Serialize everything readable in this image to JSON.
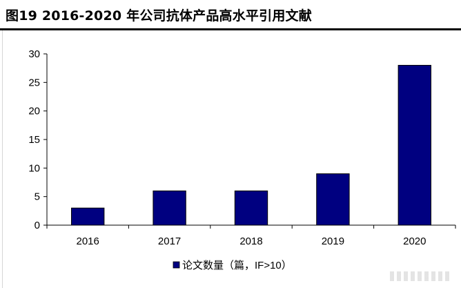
{
  "title": "图19 2016-2020 年公司抗体产品高水平引用文献",
  "chart_data": {
    "type": "bar",
    "categories": [
      "2016",
      "2017",
      "2018",
      "2019",
      "2020"
    ],
    "series": [
      {
        "name": "论文数量（篇，IF>10）",
        "values": [
          3,
          6,
          6,
          9,
          28
        ],
        "color": "#000080"
      }
    ],
    "yticks": [
      "0",
      "5",
      "10",
      "15",
      "20",
      "25",
      "30"
    ],
    "ylim": [
      0,
      30
    ],
    "xlabel": "",
    "ylabel": "",
    "grid": false,
    "legend": "bottom-center"
  }
}
